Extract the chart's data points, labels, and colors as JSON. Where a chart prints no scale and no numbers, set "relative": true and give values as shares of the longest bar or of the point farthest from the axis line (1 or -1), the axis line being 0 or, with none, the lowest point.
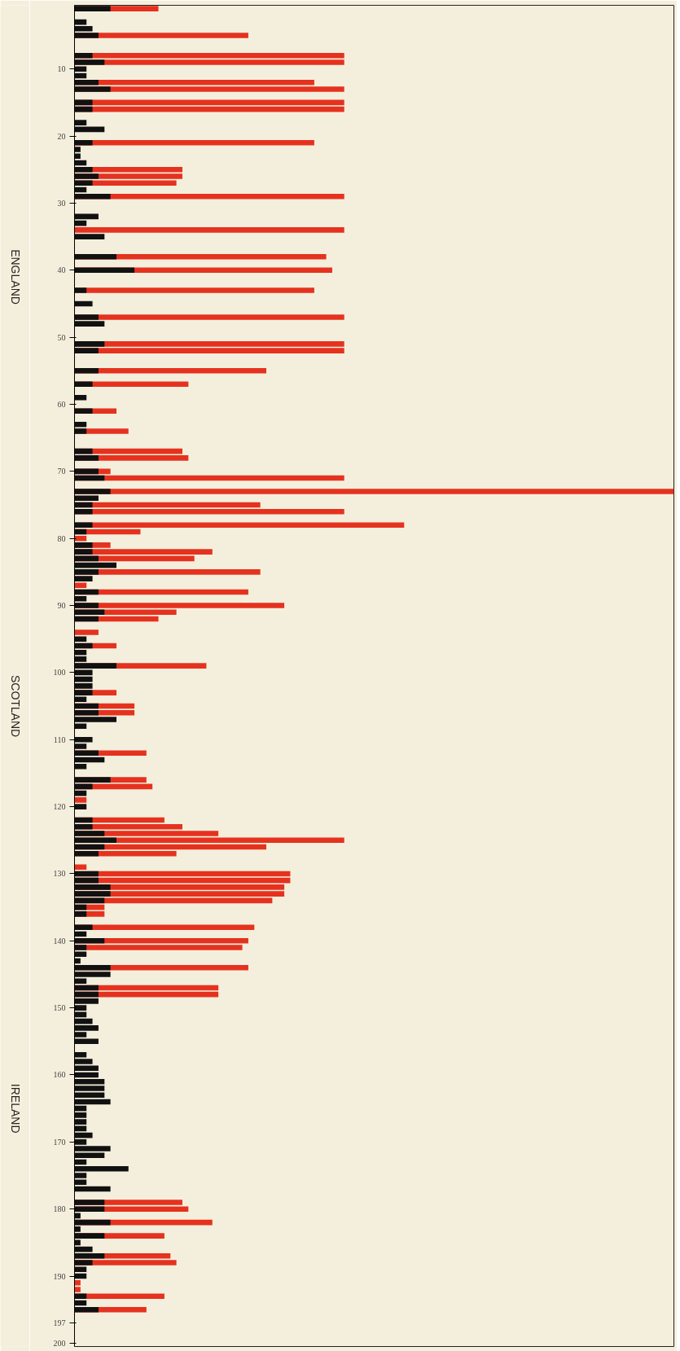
{
  "chart_data": {
    "type": "bar",
    "orientation": "horizontal",
    "relative": true,
    "categories": [
      null,
      null,
      null,
      null,
      null,
      null,
      null,
      null,
      null,
      "10",
      null,
      null,
      null,
      null,
      null,
      null,
      null,
      null,
      null,
      "20",
      null,
      null,
      null,
      null,
      null,
      null,
      null,
      null,
      null,
      "30",
      null,
      null,
      null,
      null,
      null,
      null,
      null,
      null,
      null,
      "40",
      null,
      null,
      null,
      null,
      null,
      null,
      null,
      null,
      null,
      "50",
      null,
      null,
      null,
      null,
      null,
      null,
      null,
      null,
      null,
      "60",
      null,
      null,
      null,
      null,
      null,
      null,
      null,
      null,
      null,
      "70",
      null,
      null,
      null,
      null,
      null,
      null,
      null,
      null,
      null,
      "80",
      null,
      null,
      null,
      null,
      null,
      null,
      null,
      null,
      null,
      "90",
      null,
      null,
      null,
      null,
      null,
      null,
      null,
      null,
      null,
      "100",
      null,
      null,
      null,
      null,
      null,
      null,
      null,
      null,
      null,
      "110",
      null,
      null,
      null,
      null,
      null,
      null,
      null,
      null,
      null,
      "120",
      null,
      null,
      null,
      null,
      null,
      null,
      null,
      null,
      null,
      "130",
      null,
      null,
      null,
      null,
      null,
      null,
      null,
      null,
      null,
      "140",
      null,
      null,
      null,
      null,
      null,
      null,
      null,
      null,
      null,
      "150",
      null,
      null,
      null,
      null,
      null,
      null,
      null,
      null,
      null,
      "160",
      null,
      null,
      null,
      null,
      null,
      null,
      null,
      null,
      null,
      "170",
      null,
      null,
      null,
      null,
      null,
      null,
      null,
      null,
      null,
      "180",
      null,
      null,
      null,
      null,
      null,
      null,
      null,
      null,
      null,
      "190",
      null,
      null,
      null,
      null,
      null,
      null,
      "197",
      null,
      null,
      "200"
    ],
    "series": [
      {
        "color": "#e5321f",
        "values": [
          0.14,
          null,
          null,
          null,
          0.29,
          null,
          null,
          0.45,
          0.45,
          null,
          null,
          0.4,
          0.45,
          null,
          0.45,
          0.45,
          null,
          null,
          null,
          null,
          0.4,
          null,
          null,
          null,
          0.18,
          0.18,
          0.17,
          null,
          0.45,
          null,
          null,
          null,
          null,
          0.45,
          null,
          null,
          null,
          0.42,
          null,
          0.43,
          null,
          null,
          0.4,
          null,
          null,
          null,
          0.45,
          null,
          null,
          null,
          0.45,
          0.45,
          null,
          null,
          0.32,
          null,
          0.19,
          null,
          null,
          null,
          0.07,
          null,
          null,
          0.09,
          null,
          null,
          0.18,
          0.19,
          null,
          0.06,
          0.45,
          null,
          1,
          null,
          0.31,
          0.45,
          null,
          0.55,
          0.11,
          0.02,
          0.06,
          0.23,
          0.2,
          null,
          0.31,
          null,
          0.02,
          0.29,
          null,
          0.35,
          0.17,
          0.14,
          null,
          0.04,
          null,
          0.07,
          null,
          null,
          0.22,
          null,
          null,
          null,
          0.07,
          null,
          0.1,
          0.1,
          null,
          null,
          null,
          null,
          null,
          0.12,
          null,
          null,
          null,
          0.12,
          0.13,
          null,
          0.02,
          null,
          null,
          0.15,
          0.18,
          0.24,
          0.45,
          0.32,
          0.17,
          null,
          0.02,
          0.36,
          0.36,
          0.35,
          0.35,
          0.33,
          0.05,
          0.05,
          null,
          0.3,
          null,
          0.29,
          0.28,
          null,
          null,
          0.29,
          null,
          null,
          0.24,
          0.24,
          null,
          null,
          null,
          null,
          null,
          null,
          null,
          null,
          null,
          null,
          null,
          null,
          null,
          null,
          null,
          null,
          null,
          null,
          null,
          null,
          null,
          null,
          null,
          null,
          null,
          null,
          null,
          null,
          null,
          null,
          0.18,
          0.19,
          null,
          0.23,
          null,
          0.15,
          null,
          null,
          0.16,
          0.17,
          null,
          null,
          0.01,
          0.01,
          0.15,
          null,
          0.12,
          null,
          null,
          null,
          null,
          null
        ]
      },
      {
        "color": "#111111",
        "values": [
          0.06,
          0,
          0.02,
          0.03,
          0.04,
          0,
          0,
          0.03,
          0.05,
          0.02,
          0.02,
          0.04,
          0.06,
          0,
          0.03,
          0.03,
          0,
          0.02,
          0.05,
          0,
          0.03,
          0.01,
          0.01,
          0.02,
          0.03,
          0.04,
          0.03,
          0.02,
          0.06,
          0,
          0,
          0.04,
          0.02,
          0,
          0.05,
          0,
          0,
          0.07,
          0,
          0.1,
          0,
          0,
          0.02,
          0,
          0.03,
          0,
          0.04,
          0.05,
          0,
          0,
          0.05,
          0.04,
          0,
          0,
          0.04,
          0,
          0.03,
          0,
          0.02,
          0,
          0.03,
          0,
          0.02,
          0.02,
          0,
          0,
          0.03,
          0.04,
          0,
          0.04,
          0.05,
          0,
          0.06,
          0.04,
          0.03,
          0.03,
          0,
          0.03,
          0.02,
          0,
          0.03,
          0.03,
          0.04,
          0.07,
          0.04,
          0.03,
          0,
          0.04,
          0.02,
          0.04,
          0.05,
          0.04,
          0,
          0,
          0.02,
          0.03,
          0.02,
          0.02,
          0.07,
          0.03,
          0.03,
          0.03,
          0.03,
          0.02,
          0.04,
          0.04,
          0.07,
          0.02,
          0,
          0.03,
          0.02,
          0.04,
          0.05,
          0.02,
          0,
          0.06,
          0.03,
          0.02,
          0,
          0.02,
          0,
          0.03,
          0.03,
          0.05,
          0.07,
          0.05,
          0.04,
          0,
          0,
          0.04,
          0.04,
          0.06,
          0.06,
          0.05,
          0.02,
          0.02,
          0,
          0.03,
          0.02,
          0.05,
          0.02,
          0.02,
          0.01,
          0.06,
          0.06,
          0.02,
          0.04,
          0.04,
          0.04,
          0.02,
          0.02,
          0.03,
          0.04,
          0.02,
          0.04,
          0,
          0.02,
          0.03,
          0.04,
          0.04,
          0.05,
          0.05,
          0.05,
          0.06,
          0.02,
          0.02,
          0.02,
          0.02,
          0.03,
          0.02,
          0.06,
          0.05,
          0.02,
          0.09,
          0.02,
          0.02,
          0.06,
          0,
          0.05,
          0.05,
          0.01,
          0.06,
          0.01,
          0.05,
          0.01,
          0.03,
          0.05,
          0.03,
          0.02,
          0.02,
          0,
          0,
          0.02,
          0.02,
          0.04,
          0,
          0,
          null,
          null,
          null
        ]
      }
    ],
    "annotations": [
      "ENGLAND",
      "SCOTLAND",
      "IRELAND"
    ]
  }
}
